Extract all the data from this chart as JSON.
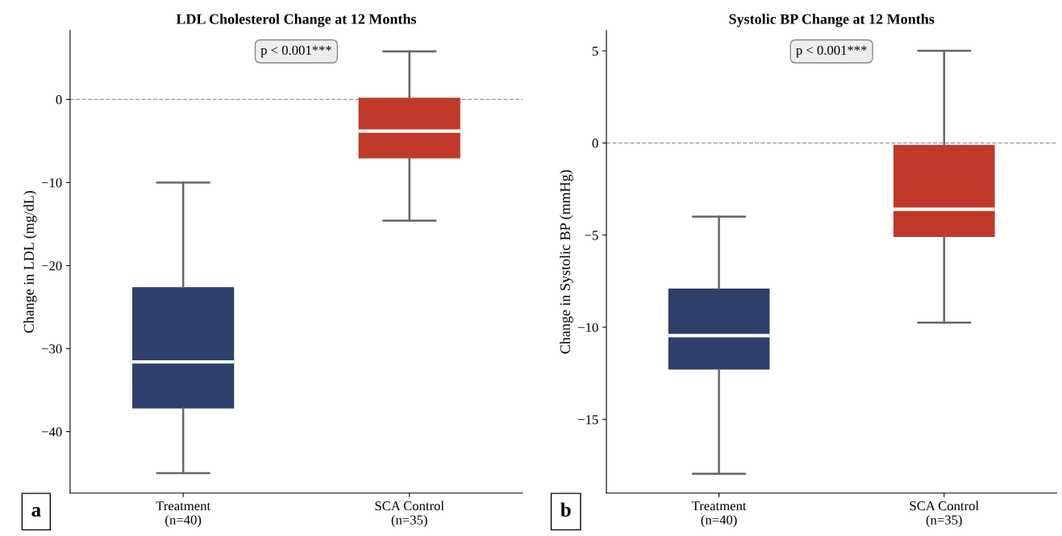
{
  "chart_data": [
    {
      "type": "box",
      "title": "LDL Cholesterol Change at 12 Months",
      "ylabel": "Change in LDL (mg/dL)",
      "categories": [
        "Treatment\n(n=40)",
        "SCA Control\n(n=35)"
      ],
      "colors": [
        "#2e3f6b",
        "#c0392b"
      ],
      "boxes": [
        {
          "low": -45,
          "q1": -37.2,
          "median": -31.6,
          "q3": -22.6,
          "high": -10
        },
        {
          "low": -14.6,
          "q1": -7.1,
          "median": -3.8,
          "q3": 0.2,
          "high": 5.8
        }
      ],
      "ylim": [
        -47.4,
        8.3
      ],
      "yticks": [
        -40,
        -30,
        -20,
        -10,
        0
      ],
      "ref_lines": [
        {
          "axis": "y",
          "value": 0,
          "color": "#999999",
          "line_style": "dashed"
        }
      ],
      "grid": false,
      "legend": false,
      "annotations": [
        "p < 0.001***",
        "a"
      ]
    },
    {
      "type": "box",
      "title": "Systolic BP Change at 12 Months",
      "ylabel": "Change in Systolic BP (mmHg)",
      "categories": [
        "Treatment\n(n=40)",
        "SCA Control\n(n=35)"
      ],
      "colors": [
        "#2e3f6b",
        "#c0392b"
      ],
      "boxes": [
        {
          "low": -17.95,
          "q1": -12.3,
          "median": -10.45,
          "q3": -7.9,
          "high": -4.0
        },
        {
          "low": -9.75,
          "q1": -5.1,
          "median": -3.6,
          "q3": -0.1,
          "high": 5.0
        }
      ],
      "ylim": [
        -19.0,
        6.1
      ],
      "yticks": [
        -15,
        -10,
        -5,
        0,
        5
      ],
      "ref_lines": [
        {
          "axis": "y",
          "value": 0,
          "color": "#999999",
          "line_style": "dashed"
        }
      ],
      "grid": false,
      "legend": false,
      "annotations": [
        "p < 0.001***",
        "b"
      ]
    }
  ]
}
